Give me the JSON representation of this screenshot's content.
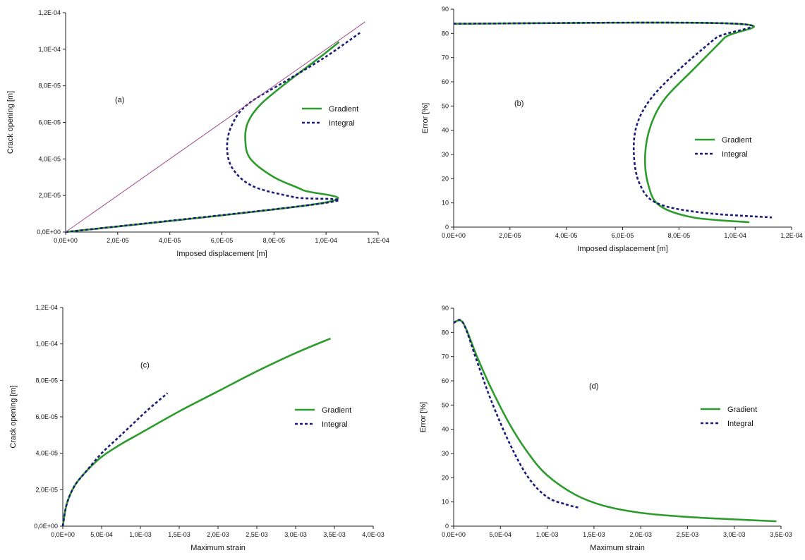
{
  "chart_data": [
    {
      "id": "a",
      "type": "line",
      "panel_label": "(a)",
      "xlabel": "Imposed displacement [m]",
      "ylabel": "Crack opening [m]",
      "xlim": [
        0,
        0.00012
      ],
      "ylim": [
        0,
        0.00012
      ],
      "xticks": [
        0,
        2e-05,
        4e-05,
        6e-05,
        8e-05,
        0.0001,
        0.00012
      ],
      "xtick_labels": [
        "0,0E+00",
        "2,0E-05",
        "4,0E-05",
        "6,0E-05",
        "8,0E-05",
        "1,0E-04",
        "1,2E-04"
      ],
      "yticks": [
        0,
        2e-05,
        4e-05,
        6e-05,
        8e-05,
        0.0001,
        0.00012
      ],
      "ytick_labels": [
        "0,0E+00",
        "2,0E-05",
        "4,0E-05",
        "6,0E-05",
        "8,0E-05",
        "1,0E-04",
        "1,2E-04"
      ],
      "legend_position": "right",
      "series": [
        {
          "name": "Gradient",
          "style": "solid",
          "color": "#2e9b2e",
          "x": [
            0,
            9.9e-05,
            9.1e-05,
            8e-05,
            7.1e-05,
            6.9e-05,
            7e-05,
            7.5e-05,
            8.6e-05,
            9.8e-05,
            0.000105
          ],
          "y": [
            0,
            1.6e-05,
            2.3e-05,
            3e-05,
            4e-05,
            5e-05,
            6e-05,
            7e-05,
            8.3e-05,
            9.6e-05,
            0.000104
          ]
        },
        {
          "name": "Integral",
          "style": "dashed",
          "color": "#1c1c78",
          "x": [
            0,
            0.0001,
            8.8e-05,
            7.2e-05,
            6.4e-05,
            6.2e-05,
            6.4e-05,
            7e-05,
            8.5e-05,
            0.0001,
            0.000113
          ],
          "y": [
            0,
            1.6e-05,
            1.9e-05,
            2.5e-05,
            3.5e-05,
            4.7e-05,
            5.9e-05,
            7e-05,
            8.3e-05,
            9.6e-05,
            0.000109
          ]
        },
        {
          "name": "",
          "style": "thin",
          "color": "#a04a8a",
          "x": [
            0,
            0.000115
          ],
          "y": [
            0,
            0.000115
          ]
        }
      ]
    },
    {
      "id": "b",
      "type": "line",
      "panel_label": "(b)",
      "xlabel": "Imposed displacement [m]",
      "ylabel": "Error [%]",
      "xlim": [
        0,
        0.00012
      ],
      "ylim": [
        0,
        90
      ],
      "xticks": [
        0,
        2e-05,
        4e-05,
        6e-05,
        8e-05,
        0.0001,
        0.00012
      ],
      "xtick_labels": [
        "0,0E+00",
        "2,0E-05",
        "4,0E-05",
        "6,0E-05",
        "8,0E-05",
        "1,0E-04",
        "1,2E-04"
      ],
      "yticks": [
        0,
        10,
        20,
        30,
        40,
        50,
        60,
        70,
        80,
        90
      ],
      "ytick_labels": [
        "0",
        "10",
        "20",
        "30",
        "40",
        "50",
        "60",
        "70",
        "80",
        "90"
      ],
      "legend_position": "right",
      "series": [
        {
          "name": "Gradient",
          "style": "solid",
          "color": "#2e9b2e",
          "x": [
            0,
            0.0001,
            9.6e-05,
            8.5e-05,
            7.5e-05,
            7e-05,
            6.8e-05,
            6.9e-05,
            7.3e-05,
            8.5e-05,
            0.000105
          ],
          "y": [
            84,
            84,
            78,
            65,
            53,
            42,
            30,
            18,
            9,
            4,
            2
          ]
        },
        {
          "name": "Integral",
          "style": "dashed",
          "color": "#1c1c78",
          "x": [
            0,
            0.0001,
            9.3e-05,
            8e-05,
            7e-05,
            6.5e-05,
            6.4e-05,
            6.6e-05,
            7.2e-05,
            8.8e-05,
            0.000113
          ],
          "y": [
            84,
            84,
            78,
            65,
            53,
            42,
            30,
            18,
            10,
            6,
            4
          ]
        }
      ]
    },
    {
      "id": "c",
      "type": "line",
      "panel_label": "(c)",
      "xlabel": "Maximum strain",
      "ylabel": "Crack opening [m]",
      "xlim": [
        0,
        0.004
      ],
      "ylim": [
        0,
        0.00012
      ],
      "xticks": [
        0,
        0.0005,
        0.001,
        0.0015,
        0.002,
        0.0025,
        0.003,
        0.0035,
        0.004
      ],
      "xtick_labels": [
        "0,0E+00",
        "5,0E-04",
        "1,0E-03",
        "1,5E-03",
        "2,0E-03",
        "2,5E-03",
        "3,0E-03",
        "3,5E-03",
        "4,0E-03"
      ],
      "yticks": [
        0,
        2e-05,
        4e-05,
        6e-05,
        8e-05,
        0.0001,
        0.00012
      ],
      "ytick_labels": [
        "0,0E+00",
        "2,0E-05",
        "4,0E-05",
        "6,0E-05",
        "8,0E-05",
        "1,0E-04",
        "1,2E-04"
      ],
      "legend_position": "right",
      "series": [
        {
          "name": "Gradient",
          "style": "solid",
          "color": "#2e9b2e",
          "x": [
            0,
            5e-05,
            0.00015,
            0.0003,
            0.0005,
            0.00075,
            0.001,
            0.0015,
            0.002,
            0.0025,
            0.003,
            0.00345
          ],
          "y": [
            0,
            1.2e-05,
            2.2e-05,
            3e-05,
            3.8e-05,
            4.5e-05,
            5.1e-05,
            6.3e-05,
            7.4e-05,
            8.5e-05,
            9.5e-05,
            0.000103
          ]
        },
        {
          "name": "Integral",
          "style": "dashed",
          "color": "#1c1c78",
          "x": [
            0,
            5e-05,
            0.00015,
            0.0003,
            0.0005,
            0.0007,
            0.0009,
            0.0011,
            0.00135
          ],
          "y": [
            0,
            1.2e-05,
            2.2e-05,
            3e-05,
            4e-05,
            4.8e-05,
            5.6e-05,
            6.4e-05,
            7.3e-05
          ]
        }
      ]
    },
    {
      "id": "d",
      "type": "line",
      "panel_label": "(d)",
      "xlabel": "Maximum strain",
      "ylabel": "Error [%]",
      "xlim": [
        0,
        0.0035
      ],
      "ylim": [
        0,
        90
      ],
      "xticks": [
        0,
        0.0005,
        0.001,
        0.0015,
        0.002,
        0.0025,
        0.003,
        0.0035
      ],
      "xtick_labels": [
        "0,0E+00",
        "5,0E-04",
        "1,0E-03",
        "1,5E-03",
        "2,0E-03",
        "2,5E-03",
        "3,0E-03",
        "3,5E-03"
      ],
      "yticks": [
        0,
        10,
        20,
        30,
        40,
        50,
        60,
        70,
        80,
        90
      ],
      "ytick_labels": [
        "0",
        "10",
        "20",
        "30",
        "40",
        "50",
        "60",
        "70",
        "80",
        "90"
      ],
      "legend_position": "right",
      "series": [
        {
          "name": "Gradient",
          "style": "solid",
          "color": "#2e9b2e",
          "x": [
            0,
            0.0001,
            0.00025,
            0.0004,
            0.0006,
            0.0008,
            0.001,
            0.0013,
            0.0016,
            0.002,
            0.0025,
            0.003,
            0.00345
          ],
          "y": [
            84,
            84,
            70,
            57,
            42,
            30,
            21,
            13,
            8.5,
            5.5,
            3.8,
            2.8,
            2
          ]
        },
        {
          "name": "Integral",
          "style": "dashed",
          "color": "#1c1c78",
          "x": [
            0,
            0.0001,
            0.00025,
            0.0004,
            0.0006,
            0.0008,
            0.001,
            0.0012,
            0.00135
          ],
          "y": [
            84,
            84,
            68,
            52,
            34,
            20,
            12,
            9,
            7.5
          ]
        }
      ]
    }
  ]
}
